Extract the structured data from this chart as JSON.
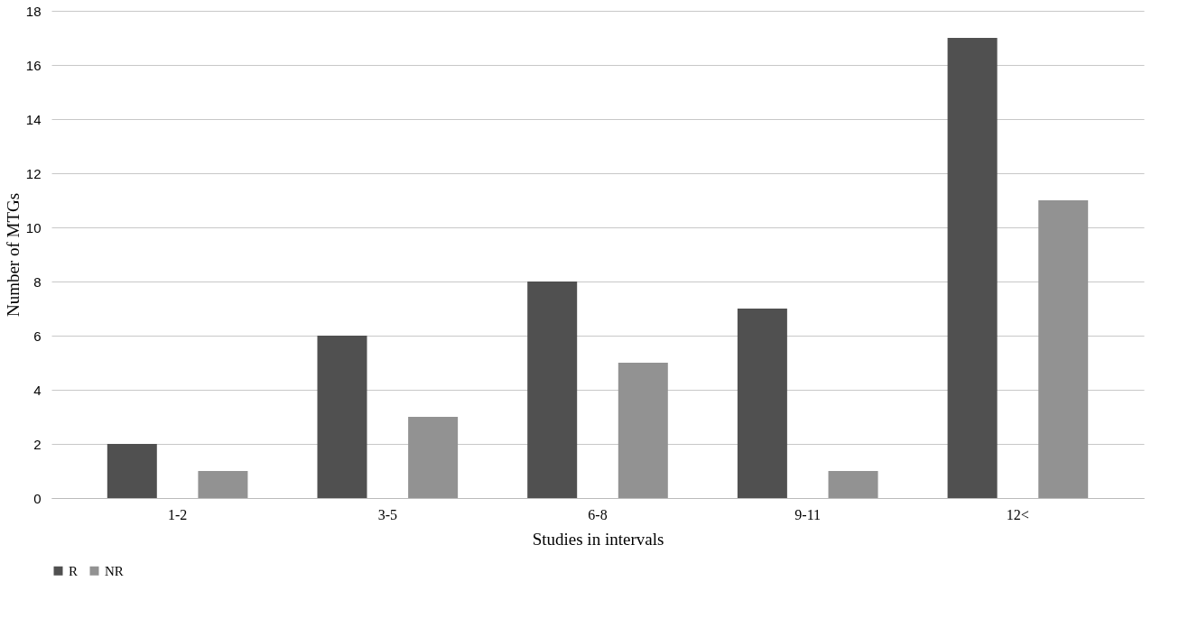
{
  "chart_data": {
    "type": "bar",
    "xlabel": "Studies in intervals",
    "ylabel": "Number of MTGs",
    "categories": [
      "1-2",
      "3-5",
      "6-8",
      "9-11",
      "12<"
    ],
    "series": [
      {
        "name": "R",
        "color": "#505050",
        "values": [
          2,
          6,
          8,
          7,
          17
        ]
      },
      {
        "name": "NR",
        "color": "#929292",
        "values": [
          1,
          3,
          5,
          1,
          11
        ]
      }
    ],
    "ylim": [
      0,
      18
    ],
    "yticks": [
      0,
      2,
      4,
      6,
      8,
      10,
      12,
      14,
      16,
      18
    ],
    "grid": "y",
    "legend": "bottom"
  }
}
